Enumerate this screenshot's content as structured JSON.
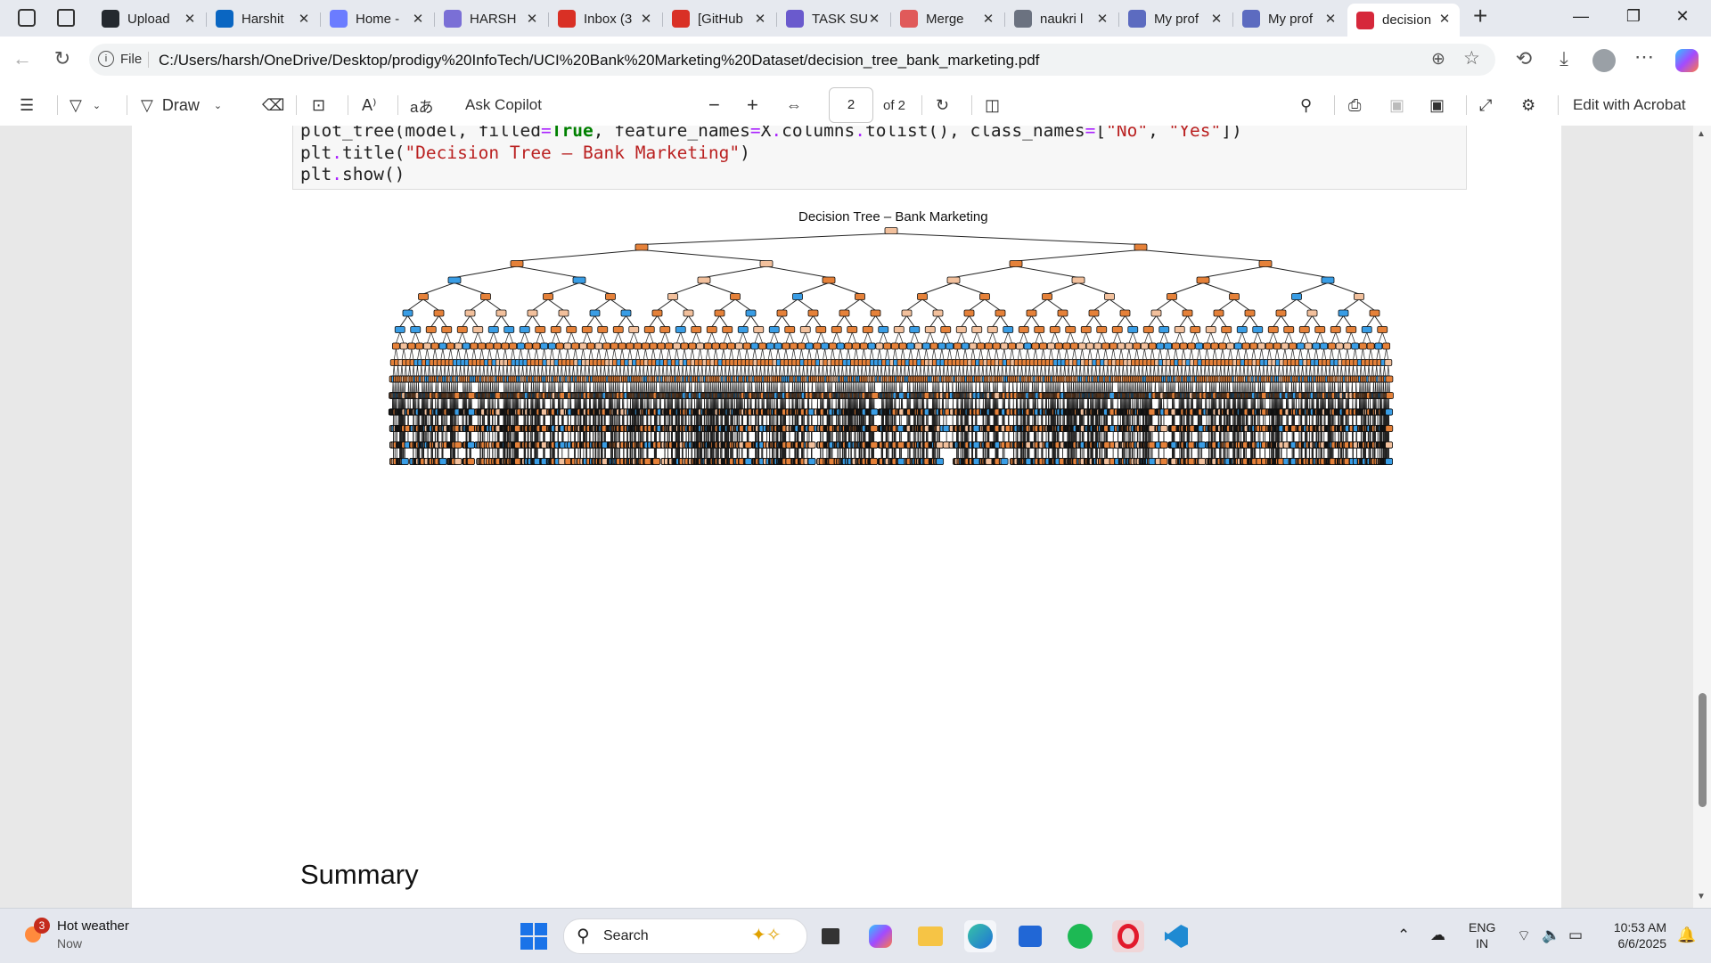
{
  "tabs": [
    {
      "label": "Upload",
      "icon": "github-icon",
      "color": "#24292f"
    },
    {
      "label": "Harshit",
      "icon": "linkedin-icon",
      "color": "#0a66c2"
    },
    {
      "label": "Home -",
      "icon": "home-icon",
      "color": "#6b7cff"
    },
    {
      "label": "HARSH",
      "icon": "profile-icon",
      "color": "#7a6fd6"
    },
    {
      "label": "Inbox (3",
      "icon": "gmail-icon",
      "color": "#d93025"
    },
    {
      "label": "[GitHub",
      "icon": "gmail-icon",
      "color": "#d93025"
    },
    {
      "label": "TASK SU",
      "icon": "forms-icon",
      "color": "#6a5acd"
    },
    {
      "label": "Merge",
      "icon": "heart-icon",
      "color": "#e05a5a"
    },
    {
      "label": "naukri l",
      "icon": "search-icon",
      "color": "#6b7280"
    },
    {
      "label": "My prof",
      "icon": "profile-icon",
      "color": "#5c6bc0"
    },
    {
      "label": "My prof",
      "icon": "profile-icon",
      "color": "#5c6bc0"
    },
    {
      "label": "decision",
      "icon": "pdf-icon",
      "color": "#d6283b",
      "active": true
    }
  ],
  "address": {
    "file_label": "File",
    "url": "C:/Users/harsh/OneDrive/Desktop/prodigy%20InfoTech/UCI%20Bank%20Marketing%20Dataset/decision_tree_bank_marketing.pdf"
  },
  "pdf_toolbar": {
    "draw_label": "Draw",
    "ask_copilot_label": "Ask Copilot",
    "current_page": "2",
    "page_total": "of 2",
    "edit_acrobat_label": "Edit with Acrobat"
  },
  "document": {
    "code_lines": [
      "plot_tree(model, filled=True, feature_names=X.columns.tolist(), class_names=[\"No\", \"Yes\"])",
      "plt.title(\"Decision Tree – Bank Marketing\")",
      "plt.show()"
    ],
    "tree_title": "Decision Tree – Bank Marketing",
    "summary_heading": "Summary"
  },
  "taskbar": {
    "weather_title": "Hot weather",
    "weather_sub": "Now",
    "weather_badge": "3",
    "search_label": "Search",
    "lang_top": "ENG",
    "lang_bottom": "IN",
    "time": "10:53 AM",
    "date": "6/6/2025"
  },
  "colors": {
    "node_no": "#e58139",
    "node_yes": "#399de5",
    "node_mixed": "#f2c09c"
  }
}
